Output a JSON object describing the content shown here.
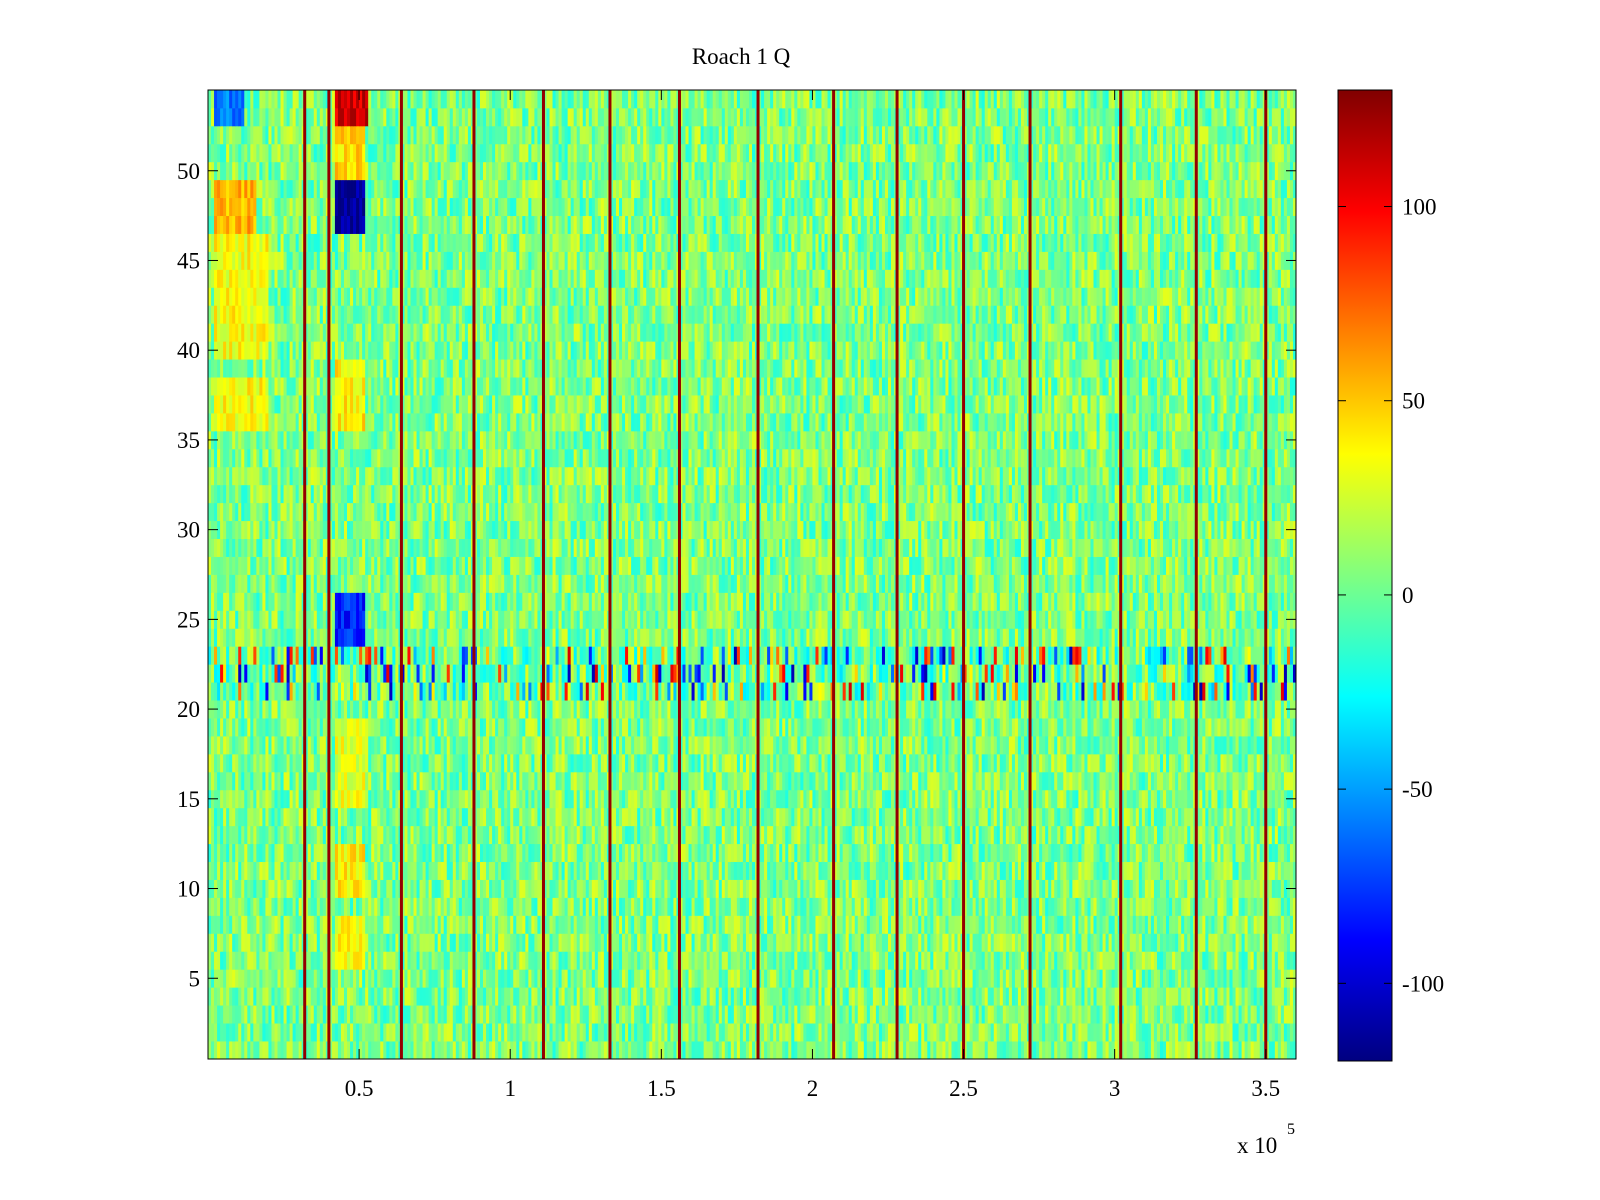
{
  "chart_data": {
    "type": "heatmap",
    "title": "Roach 1 Q",
    "xlabel": "",
    "ylabel": "",
    "colormap": "jet",
    "x_multiplier_label": {
      "base": "x 10",
      "exponent": "5"
    },
    "x_ticks": [
      0.5,
      1,
      1.5,
      2,
      2.5,
      3,
      3.5
    ],
    "x_tick_labels": [
      "0.5",
      "1",
      "1.5",
      "2",
      "2.5",
      "3",
      "3.5"
    ],
    "xlim": [
      0.0,
      3.6
    ],
    "y_ticks": [
      5,
      10,
      15,
      20,
      25,
      30,
      35,
      40,
      45,
      50
    ],
    "y_tick_labels": [
      "5",
      "10",
      "15",
      "20",
      "25",
      "30",
      "35",
      "40",
      "45",
      "50"
    ],
    "ylim": [
      0.5,
      54.5
    ],
    "rows": 54,
    "colorbar": {
      "range": [
        -120,
        130
      ],
      "ticks": [
        -100,
        -50,
        0,
        50,
        100
      ],
      "tick_labels": [
        "-100",
        "-50",
        "0",
        "50",
        "100"
      ]
    },
    "background_value": 5,
    "noise_amplitude": 25,
    "stripe_x": [
      0.32,
      0.4,
      0.64,
      0.88,
      1.11,
      1.33,
      1.56,
      1.82,
      2.07,
      2.28,
      2.5,
      2.72,
      3.02,
      3.27,
      3.5
    ],
    "stripe_value": 125,
    "high_variance_rows": [
      21,
      22,
      23
    ],
    "high_variance_amplitude": 110,
    "features": [
      {
        "x": [
          0.02,
          0.16
        ],
        "y": [
          47,
          49
        ],
        "value": 55
      },
      {
        "x": [
          0.02,
          0.2
        ],
        "y": [
          40,
          46
        ],
        "value": 35
      },
      {
        "x": [
          0.02,
          0.2
        ],
        "y": [
          36,
          38
        ],
        "value": 35
      },
      {
        "x": [
          0.42,
          0.53
        ],
        "y": [
          53,
          54
        ],
        "value": 110
      },
      {
        "x": [
          0.42,
          0.52
        ],
        "y": [
          50,
          52
        ],
        "value": 45
      },
      {
        "x": [
          0.42,
          0.52
        ],
        "y": [
          47,
          49
        ],
        "value": -115
      },
      {
        "x": [
          0.42,
          0.52
        ],
        "y": [
          24,
          26
        ],
        "value": -80
      },
      {
        "x": [
          0.42,
          0.52
        ],
        "y": [
          36,
          39
        ],
        "value": 40
      },
      {
        "x": [
          0.42,
          0.52
        ],
        "y": [
          15,
          19
        ],
        "value": 30
      },
      {
        "x": [
          0.42,
          0.52
        ],
        "y": [
          10,
          12
        ],
        "value": 40
      },
      {
        "x": [
          0.42,
          0.52
        ],
        "y": [
          6,
          8
        ],
        "value": 35
      },
      {
        "x": [
          0.02,
          0.12
        ],
        "y": [
          53,
          54
        ],
        "value": -60
      }
    ]
  }
}
